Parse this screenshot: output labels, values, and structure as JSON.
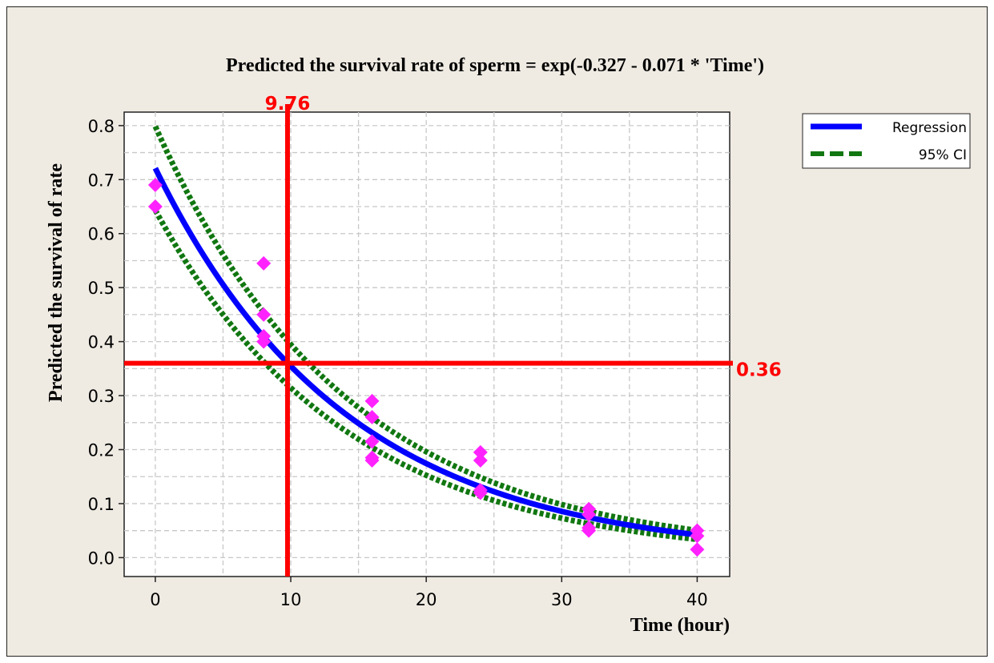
{
  "chart_data": {
    "type": "scatter",
    "title": "Predicted the survival rate of sperm = exp(-0.327 - 0.071 * 'Time')",
    "xlabel": "Time (hour)",
    "ylabel": "Predicted the survival of rate",
    "xlim": [
      -2.3,
      42.4
    ],
    "ylim": [
      -0.035,
      0.825
    ],
    "x_ticks": [
      0,
      10,
      20,
      30,
      40
    ],
    "x_tick_labels": [
      "0",
      "10",
      "20",
      "30",
      "40"
    ],
    "y_ticks": [
      0.0,
      0.1,
      0.2,
      0.3,
      0.4,
      0.5,
      0.6,
      0.7,
      0.8
    ],
    "y_tick_labels": [
      "0.0",
      "0.1",
      "0.2",
      "0.3",
      "0.4",
      "0.5",
      "0.6",
      "0.7",
      "0.8"
    ],
    "grid": true,
    "legend_position": "top-right",
    "regression": {
      "intercept": -0.327,
      "slope": -0.071,
      "x_range": [
        0,
        40
      ]
    },
    "ci_offset": 0.03,
    "series": [
      {
        "name": "Regression",
        "color": "#0000ff"
      },
      {
        "name": "95% CI",
        "color": "#117711"
      }
    ],
    "observed": {
      "color": "#ff22ff",
      "points": [
        [
          0,
          0.69
        ],
        [
          0,
          0.65
        ],
        [
          8,
          0.545
        ],
        [
          8,
          0.45
        ],
        [
          8,
          0.41
        ],
        [
          8,
          0.4
        ],
        [
          16,
          0.29
        ],
        [
          16,
          0.26
        ],
        [
          16,
          0.215
        ],
        [
          16,
          0.185
        ],
        [
          16,
          0.18
        ],
        [
          24,
          0.195
        ],
        [
          24,
          0.18
        ],
        [
          24,
          0.125
        ],
        [
          24,
          0.12
        ],
        [
          32,
          0.09
        ],
        [
          32,
          0.08
        ],
        [
          32,
          0.055
        ],
        [
          32,
          0.05
        ],
        [
          40,
          0.05
        ],
        [
          40,
          0.04
        ],
        [
          40,
          0.015
        ]
      ]
    },
    "reference_lines": {
      "color": "#ff0000",
      "vertical": {
        "x": 9.76,
        "label": "9.76"
      },
      "horizontal": {
        "y": 0.36,
        "label": "0.36"
      }
    }
  }
}
